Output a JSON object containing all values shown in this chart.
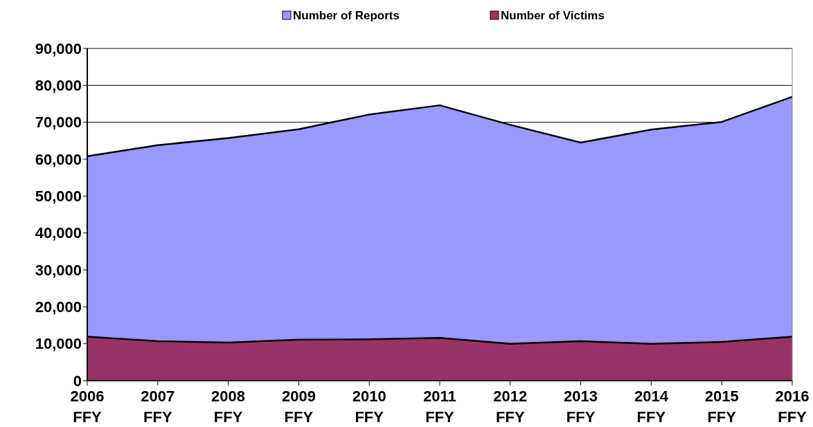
{
  "chart_data": {
    "type": "area",
    "categories": [
      "2006 FFY",
      "2007 FFY",
      "2008 FFY",
      "2009 FFY",
      "2010 FFY",
      "2011 FFY",
      "2012 FFY",
      "2013 FFY",
      "2014 FFY",
      "2015 FFY",
      "2016 FFY"
    ],
    "series": [
      {
        "name": "Number of Reports",
        "color": "#9999ff",
        "values": [
          60800,
          63800,
          65700,
          68100,
          72100,
          74600,
          69300,
          64500,
          68000,
          70100,
          76900
        ]
      },
      {
        "name": "Number of Victims",
        "color": "#993366",
        "values": [
          11900,
          10700,
          10300,
          11100,
          11200,
          11600,
          10000,
          10700,
          10000,
          10500,
          11900
        ]
      }
    ],
    "ylim": [
      0,
      90000
    ],
    "yticks": [
      {
        "value": 0,
        "label": "0"
      },
      {
        "value": 10000,
        "label": "10,000"
      },
      {
        "value": 20000,
        "label": "20,000"
      },
      {
        "value": 30000,
        "label": "30,000"
      },
      {
        "value": 40000,
        "label": "40,000"
      },
      {
        "value": 50000,
        "label": "50,000"
      },
      {
        "value": 60000,
        "label": "60,000"
      },
      {
        "value": 70000,
        "label": "70,000"
      },
      {
        "value": 80000,
        "label": "80,000"
      },
      {
        "value": 90000,
        "label": "90,000"
      }
    ],
    "grid": "y",
    "legend": "top"
  }
}
